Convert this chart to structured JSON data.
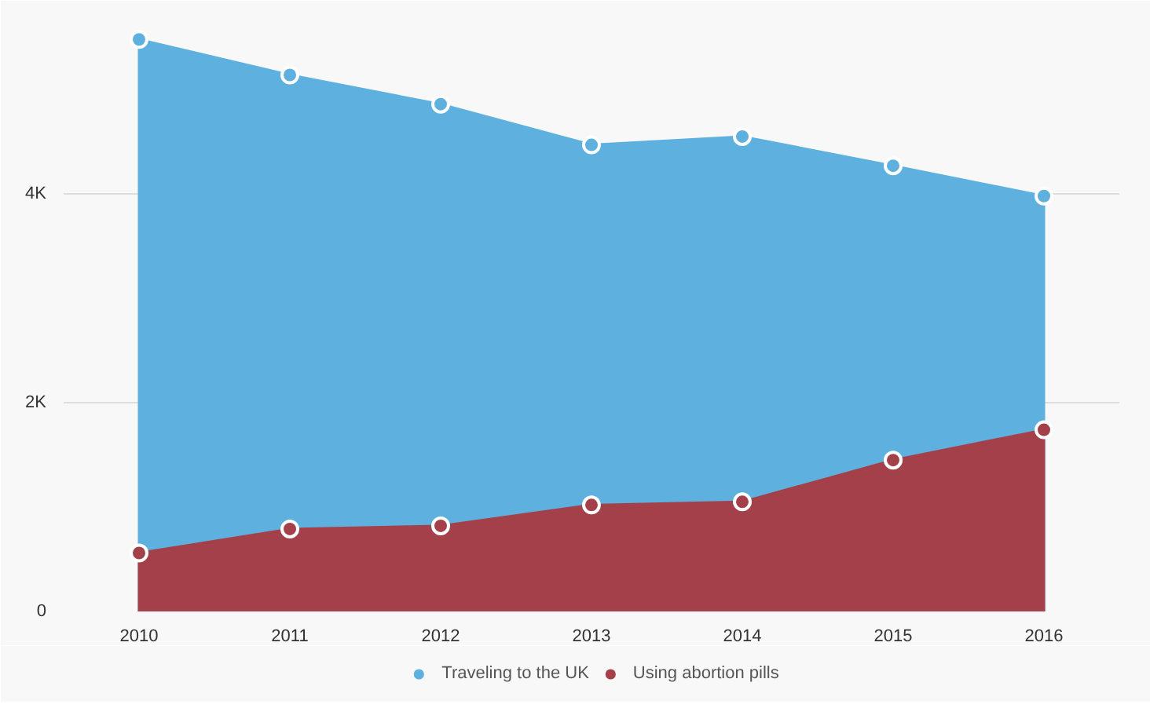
{
  "chart_data": {
    "type": "area",
    "x": [
      2010,
      2011,
      2012,
      2013,
      2014,
      2015,
      2016
    ],
    "xlim": [
      2009.5,
      2016.5
    ],
    "xticks": [
      2010,
      2011,
      2012,
      2013,
      2014,
      2015,
      2016
    ],
    "ylim": [
      0,
      5700
    ],
    "yticks": [
      {
        "value": 0,
        "label": "0"
      },
      {
        "value": 2000,
        "label": "2K"
      },
      {
        "value": 4000,
        "label": "4K"
      }
    ],
    "series": [
      {
        "name": "Traveling to the UK",
        "color": "#5eb0df",
        "values": [
          5480,
          5140,
          4860,
          4470,
          4550,
          4270,
          3980
        ]
      },
      {
        "name": "Using abortion pills",
        "color": "#a4404a",
        "values": [
          560,
          790,
          820,
          1020,
          1050,
          1450,
          1740
        ]
      }
    ],
    "grid": "y",
    "legend": "bottom",
    "marker": "circle"
  }
}
